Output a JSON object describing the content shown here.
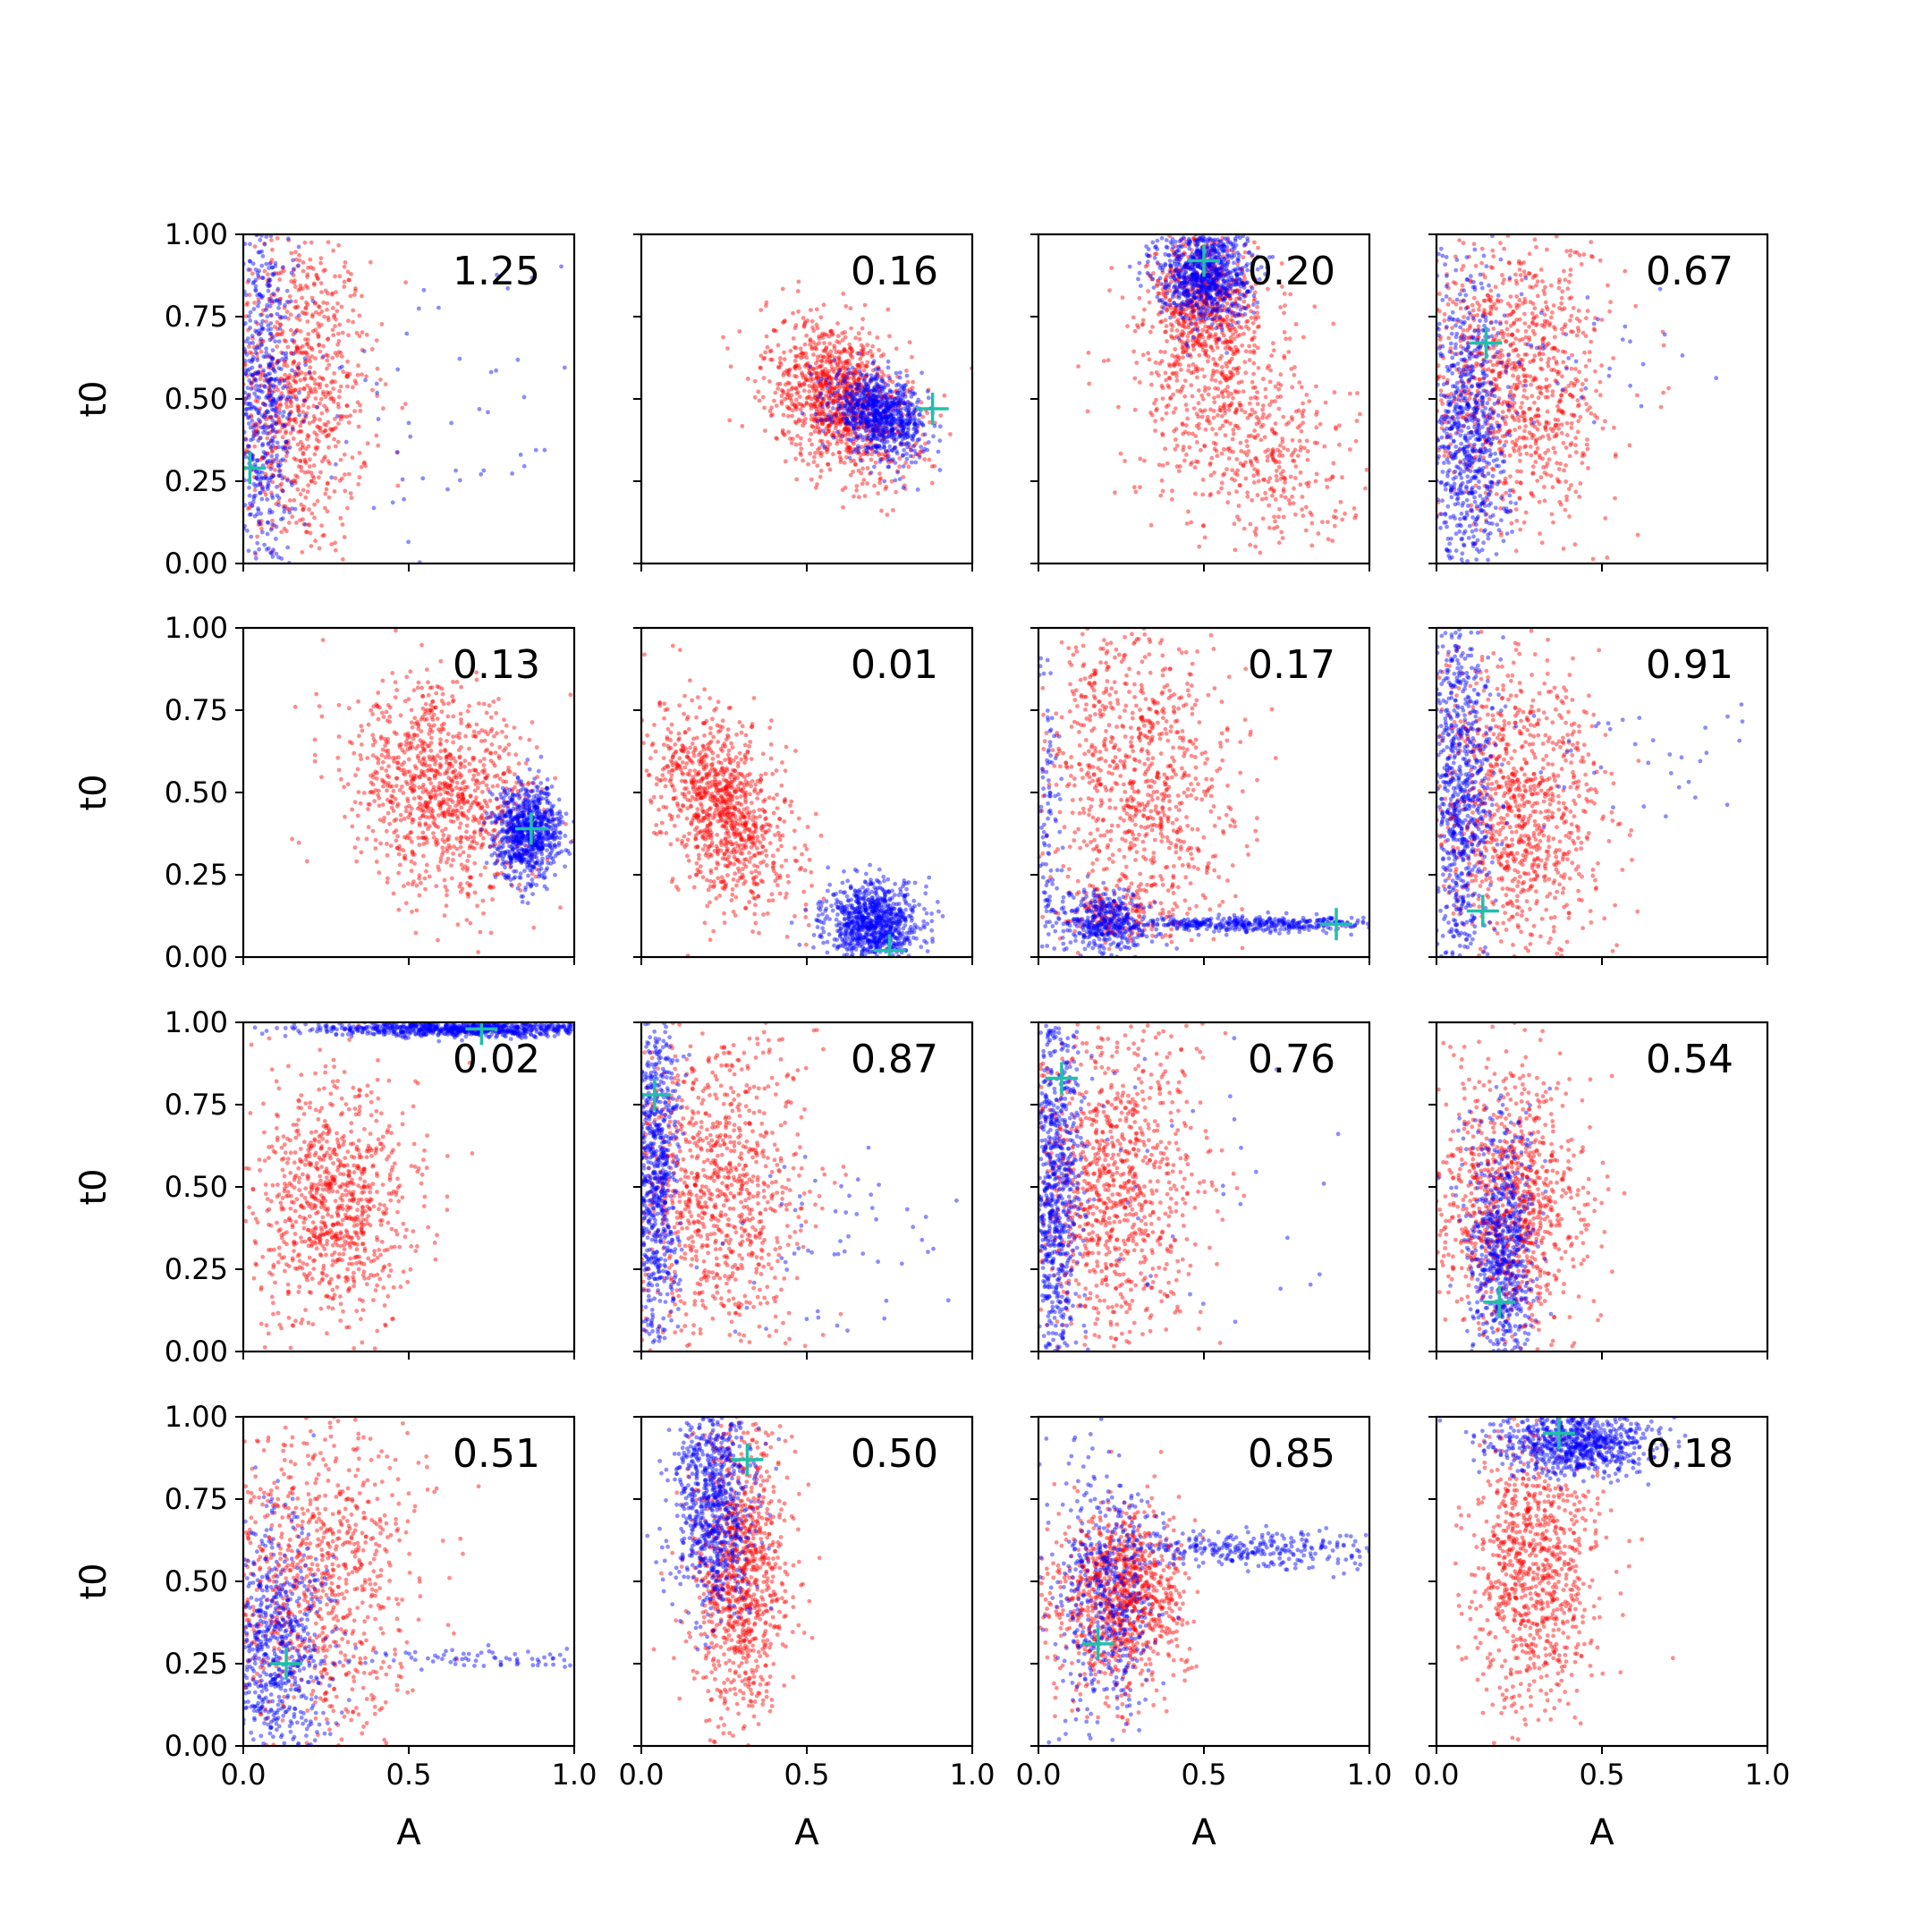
{
  "chart_data": {
    "type": "scatter",
    "grid": false,
    "rows": 4,
    "cols": 4,
    "xlabel": "A",
    "ylabel": "t0",
    "xlim": [
      0,
      1
    ],
    "ylim": [
      0,
      1
    ],
    "xticks": [
      "0.0",
      "0.5",
      "1.0"
    ],
    "yticks": [
      "0.00",
      "0.25",
      "0.50",
      "0.75",
      "1.00"
    ],
    "series_colors": {
      "red": "#ff0000",
      "blue": "#0000ff",
      "marker": "#20c0a8"
    },
    "panels": [
      {
        "annotation": "1.25",
        "marker": [
          0.02,
          0.29
        ],
        "red": {
          "clusters": [
            {
              "cx": 0.16,
              "cy": 0.52,
              "sx": 0.11,
              "sy": 0.25,
              "rho": 0.0,
              "n": 900
            }
          ]
        },
        "blue": {
          "clusters": [
            {
              "cx": 0.05,
              "cy": 0.5,
              "sx": 0.06,
              "sy": 0.3,
              "rho": 0.0,
              "n": 700
            },
            {
              "cx": 0.55,
              "cy": 0.45,
              "sx": 0.25,
              "sy": 0.25,
              "rho": 0.0,
              "n": 60
            }
          ]
        }
      },
      {
        "annotation": "0.16",
        "marker": [
          0.88,
          0.47
        ],
        "red": {
          "clusters": [
            {
              "cx": 0.6,
              "cy": 0.5,
              "sx": 0.11,
              "sy": 0.12,
              "rho": -0.35,
              "n": 1100
            }
          ]
        },
        "blue": {
          "clusters": [
            {
              "cx": 0.72,
              "cy": 0.45,
              "sx": 0.07,
              "sy": 0.06,
              "rho": -0.3,
              "n": 800
            }
          ]
        }
      },
      {
        "annotation": "0.20",
        "marker": [
          0.5,
          0.92
        ],
        "red": {
          "clusters": [
            {
              "cx": 0.5,
              "cy": 0.78,
              "sx": 0.08,
              "sy": 0.11,
              "rho": 0.0,
              "n": 700
            },
            {
              "cx": 0.62,
              "cy": 0.4,
              "sx": 0.16,
              "sy": 0.18,
              "rho": -0.35,
              "n": 600
            }
          ]
        },
        "blue": {
          "clusters": [
            {
              "cx": 0.5,
              "cy": 0.88,
              "sx": 0.07,
              "sy": 0.07,
              "rho": 0.0,
              "n": 800
            }
          ]
        }
      },
      {
        "annotation": "0.67",
        "marker": [
          0.15,
          0.67
        ],
        "red": {
          "clusters": [
            {
              "cx": 0.24,
              "cy": 0.55,
              "sx": 0.14,
              "sy": 0.22,
              "rho": 0.0,
              "n": 1000
            }
          ]
        },
        "blue": {
          "clusters": [
            {
              "cx": 0.1,
              "cy": 0.4,
              "sx": 0.06,
              "sy": 0.24,
              "rho": 0.0,
              "n": 800
            },
            {
              "cx": 0.5,
              "cy": 0.6,
              "sx": 0.2,
              "sy": 0.1,
              "rho": 0.0,
              "n": 30
            }
          ]
        }
      },
      {
        "annotation": "0.13",
        "marker": [
          0.87,
          0.39
        ],
        "red": {
          "clusters": [
            {
              "cx": 0.6,
              "cy": 0.5,
              "sx": 0.14,
              "sy": 0.16,
              "rho": -0.2,
              "n": 1000
            }
          ]
        },
        "blue": {
          "clusters": [
            {
              "cx": 0.86,
              "cy": 0.38,
              "sx": 0.05,
              "sy": 0.07,
              "rho": 0.0,
              "n": 800
            }
          ]
        }
      },
      {
        "annotation": "0.01",
        "marker": [
          0.75,
          0.02
        ],
        "red": {
          "clusters": [
            {
              "cx": 0.25,
              "cy": 0.45,
              "sx": 0.1,
              "sy": 0.15,
              "rho": -0.4,
              "n": 1000
            }
          ]
        },
        "blue": {
          "clusters": [
            {
              "cx": 0.7,
              "cy": 0.1,
              "sx": 0.07,
              "sy": 0.06,
              "rho": 0.0,
              "n": 900
            }
          ]
        }
      },
      {
        "annotation": "0.17",
        "marker": [
          0.9,
          0.1
        ],
        "red": {
          "clusters": [
            {
              "cx": 0.3,
              "cy": 0.55,
              "sx": 0.15,
              "sy": 0.25,
              "rho": -0.2,
              "n": 900
            },
            {
              "cx": 0.22,
              "cy": 0.12,
              "sx": 0.08,
              "sy": 0.05,
              "rho": 0.0,
              "n": 150
            }
          ]
        },
        "blue": {
          "clusters": [
            {
              "cx": 0.2,
              "cy": 0.1,
              "sx": 0.07,
              "sy": 0.05,
              "rho": 0.0,
              "n": 400
            },
            {
              "cx": 0.65,
              "cy": 0.1,
              "sx": 0.2,
              "sy": 0.012,
              "rho": 0.0,
              "n": 400
            },
            {
              "cx": 0.03,
              "cy": 0.4,
              "sx": 0.02,
              "sy": 0.25,
              "rho": 0.0,
              "n": 100
            }
          ]
        }
      },
      {
        "annotation": "0.91",
        "marker": [
          0.14,
          0.14
        ],
        "red": {
          "clusters": [
            {
              "cx": 0.25,
              "cy": 0.45,
              "sx": 0.13,
              "sy": 0.22,
              "rho": 0.0,
              "n": 1000
            }
          ]
        },
        "blue": {
          "clusters": [
            {
              "cx": 0.07,
              "cy": 0.5,
              "sx": 0.05,
              "sy": 0.28,
              "rho": 0.0,
              "n": 800
            },
            {
              "cx": 0.6,
              "cy": 0.6,
              "sx": 0.2,
              "sy": 0.1,
              "rho": 0.0,
              "n": 40
            }
          ]
        }
      },
      {
        "annotation": "0.02",
        "marker": [
          0.72,
          0.98
        ],
        "red": {
          "clusters": [
            {
              "cx": 0.28,
              "cy": 0.45,
              "sx": 0.12,
              "sy": 0.18,
              "rho": 0.0,
              "n": 900
            }
          ]
        },
        "blue": {
          "clusters": [
            {
              "cx": 0.65,
              "cy": 0.98,
              "sx": 0.22,
              "sy": 0.012,
              "rho": 0.0,
              "n": 800
            }
          ]
        }
      },
      {
        "annotation": "0.87",
        "marker": [
          0.04,
          0.78
        ],
        "red": {
          "clusters": [
            {
              "cx": 0.22,
              "cy": 0.5,
              "sx": 0.14,
              "sy": 0.25,
              "rho": 0.0,
              "n": 1000
            }
          ]
        },
        "blue": {
          "clusters": [
            {
              "cx": 0.04,
              "cy": 0.5,
              "sx": 0.035,
              "sy": 0.28,
              "rho": 0.0,
              "n": 800
            },
            {
              "cx": 0.6,
              "cy": 0.3,
              "sx": 0.2,
              "sy": 0.15,
              "rho": 0.0,
              "n": 60
            }
          ]
        }
      },
      {
        "annotation": "0.76",
        "marker": [
          0.07,
          0.83
        ],
        "red": {
          "clusters": [
            {
              "cx": 0.22,
              "cy": 0.5,
              "sx": 0.13,
              "sy": 0.25,
              "rho": 0.0,
              "n": 1000
            }
          ]
        },
        "blue": {
          "clusters": [
            {
              "cx": 0.05,
              "cy": 0.5,
              "sx": 0.04,
              "sy": 0.28,
              "rho": 0.0,
              "n": 800
            },
            {
              "cx": 0.5,
              "cy": 0.5,
              "sx": 0.25,
              "sy": 0.25,
              "rho": 0.0,
              "n": 40
            }
          ]
        }
      },
      {
        "annotation": "0.54",
        "marker": [
          0.19,
          0.15
        ],
        "red": {
          "clusters": [
            {
              "cx": 0.22,
              "cy": 0.45,
              "sx": 0.11,
              "sy": 0.2,
              "rho": 0.0,
              "n": 1000
            }
          ]
        },
        "blue": {
          "clusters": [
            {
              "cx": 0.2,
              "cy": 0.3,
              "sx": 0.05,
              "sy": 0.2,
              "rho": 0.0,
              "n": 700
            }
          ]
        }
      },
      {
        "annotation": "0.51",
        "marker": [
          0.13,
          0.25
        ],
        "red": {
          "clusters": [
            {
              "cx": 0.22,
              "cy": 0.5,
              "sx": 0.15,
              "sy": 0.25,
              "rho": 0.0,
              "n": 900
            }
          ]
        },
        "blue": {
          "clusters": [
            {
              "cx": 0.1,
              "cy": 0.3,
              "sx": 0.08,
              "sy": 0.2,
              "rho": 0.0,
              "n": 700
            },
            {
              "cx": 0.7,
              "cy": 0.26,
              "sx": 0.2,
              "sy": 0.015,
              "rho": 0.0,
              "n": 80
            }
          ]
        }
      },
      {
        "annotation": "0.50",
        "marker": [
          0.32,
          0.87
        ],
        "red": {
          "clusters": [
            {
              "cx": 0.3,
              "cy": 0.5,
              "sx": 0.07,
              "sy": 0.22,
              "rho": 0.0,
              "n": 1000
            }
          ]
        },
        "blue": {
          "clusters": [
            {
              "cx": 0.22,
              "cy": 0.75,
              "sx": 0.06,
              "sy": 0.18,
              "rho": 0.0,
              "n": 800
            }
          ]
        }
      },
      {
        "annotation": "0.85",
        "marker": [
          0.18,
          0.31
        ],
        "red": {
          "clusters": [
            {
              "cx": 0.25,
              "cy": 0.45,
              "sx": 0.1,
              "sy": 0.14,
              "rho": 0.0,
              "n": 1000
            }
          ]
        },
        "blue": {
          "clusters": [
            {
              "cx": 0.2,
              "cy": 0.45,
              "sx": 0.08,
              "sy": 0.2,
              "rho": 0.0,
              "n": 500
            },
            {
              "cx": 0.65,
              "cy": 0.6,
              "sx": 0.2,
              "sy": 0.03,
              "rho": 0.0,
              "n": 300
            }
          ]
        }
      },
      {
        "annotation": "0.18",
        "marker": [
          0.37,
          0.95
        ],
        "red": {
          "clusters": [
            {
              "cx": 0.3,
              "cy": 0.55,
              "sx": 0.1,
              "sy": 0.22,
              "rho": 0.0,
              "n": 900
            }
          ]
        },
        "blue": {
          "clusters": [
            {
              "cx": 0.42,
              "cy": 0.92,
              "sx": 0.12,
              "sy": 0.05,
              "rho": 0.0,
              "n": 800
            }
          ]
        }
      }
    ]
  }
}
